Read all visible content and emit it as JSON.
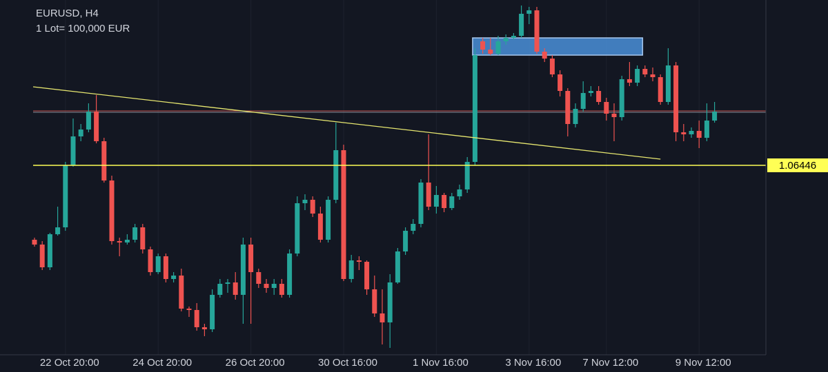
{
  "chart_data": {
    "type": "candlestick",
    "title": "EURUSD, H4",
    "subtitle": "1 Lot= 100,000 EUR",
    "up_color": "#26a69a",
    "down_color": "#ef5350",
    "ylim": [
      1.05071,
      1.07646
    ],
    "categories": [
      null,
      null,
      null,
      null,
      "22 Oct 20:00",
      null,
      null,
      null,
      null,
      null,
      null,
      null,
      null,
      null,
      null,
      null,
      "24 Oct 20:00",
      null,
      null,
      null,
      null,
      null,
      null,
      null,
      null,
      null,
      null,
      null,
      "26 Oct 20:00",
      null,
      null,
      null,
      null,
      null,
      null,
      null,
      null,
      null,
      null,
      null,
      "30 Oct 16:00",
      null,
      null,
      null,
      null,
      null,
      null,
      null,
      null,
      null,
      null,
      null,
      "1 Nov 16:00",
      null,
      null,
      null,
      null,
      null,
      null,
      null,
      null,
      null,
      null,
      null,
      "3 Nov 16:00",
      null,
      null,
      null,
      null,
      null,
      null,
      null,
      null,
      null,
      "7 Nov 12:00",
      null,
      null,
      null,
      null,
      null,
      null,
      null,
      null,
      null,
      null,
      null,
      "9 Nov 12:00",
      null,
      null
    ],
    "open": [
      1.05906,
      1.05871,
      1.05706,
      1.05946,
      1.05996,
      1.06446,
      1.06656,
      1.06706,
      1.06836,
      1.06621,
      1.06336,
      1.05896,
      1.05886,
      1.05906,
      1.05996,
      1.05836,
      1.05671,
      1.05786,
      1.05621,
      1.05646,
      1.05406,
      1.05396,
      1.05271,
      1.05256,
      1.05506,
      1.05586,
      1.05596,
      1.05506,
      1.05871,
      1.05671,
      1.05586,
      1.05556,
      1.05586,
      1.05506,
      1.05806,
      1.06171,
      1.06196,
      1.06096,
      1.05906,
      1.06196,
      1.06556,
      1.05621,
      1.05756,
      1.05746,
      1.05546,
      1.05371,
      1.05306,
      1.05596,
      1.05821,
      1.05971,
      1.06021,
      1.06321,
      1.06146,
      1.06231,
      1.06136,
      1.06221,
      1.06271,
      1.06471,
      1.07346,
      1.07286,
      1.07256,
      1.07346,
      1.07371,
      1.07386,
      1.07546,
      1.07571,
      1.07271,
      1.07221,
      1.07106,
      1.06986,
      1.06746,
      1.06856,
      1.06971,
      1.06986,
      1.06906,
      1.06821,
      1.06796,
      1.07071,
      1.07046,
      1.07146,
      1.07106,
      1.07086,
      1.06906,
      1.07171,
      1.06686,
      1.06671,
      1.06696,
      1.06646,
      1.06771
    ],
    "high": [
      1.05921,
      1.05896,
      1.05956,
      1.06146,
      1.06471,
      1.06786,
      1.06746,
      1.06896,
      1.06956,
      1.06646,
      1.06371,
      1.05921,
      1.05946,
      1.06021,
      1.06021,
      1.05856,
      1.05806,
      1.05806,
      1.05671,
      1.05696,
      1.05421,
      1.05446,
      1.05296,
      1.05546,
      1.05621,
      1.05621,
      1.05671,
      1.05921,
      1.05921,
      1.05696,
      1.05621,
      1.05621,
      1.05621,
      1.05836,
      1.06221,
      1.06236,
      1.06221,
      1.06146,
      1.06221,
      1.06756,
      1.06596,
      1.05796,
      1.05786,
      1.05756,
      1.05646,
      1.05546,
      1.05656,
      1.05846,
      1.05996,
      1.06056,
      1.06346,
      1.06671,
      1.06296,
      1.06246,
      1.06246,
      1.06306,
      1.06506,
      1.07296,
      1.07371,
      1.07371,
      1.07386,
      1.07396,
      1.07406,
      1.07606,
      1.07596,
      1.07596,
      1.07296,
      1.07246,
      1.07136,
      1.07006,
      1.06896,
      1.07056,
      1.07021,
      1.07021,
      1.06936,
      1.06896,
      1.07096,
      1.07196,
      1.07171,
      1.07171,
      1.07156,
      1.07106,
      1.07296,
      1.07196,
      1.06746,
      1.06721,
      1.06771,
      1.06896,
      1.06906
    ],
    "low": [
      1.05856,
      1.05686,
      1.05686,
      1.05936,
      1.05971,
      1.06436,
      1.06621,
      1.06686,
      1.06606,
      1.06321,
      1.05871,
      1.05786,
      1.05871,
      1.05886,
      1.05806,
      1.05646,
      1.05656,
      1.05596,
      1.05596,
      1.05386,
      1.05346,
      1.05246,
      1.05206,
      1.05236,
      1.05486,
      1.05521,
      1.05471,
      1.05296,
      1.05296,
      1.05556,
      1.05521,
      1.05506,
      1.05486,
      1.05486,
      1.05786,
      1.06121,
      1.06071,
      1.05886,
      1.05886,
      1.06171,
      1.05606,
      1.05596,
      1.05686,
      1.05506,
      1.05346,
      1.05146,
      1.05121,
      1.05586,
      1.05796,
      1.05946,
      1.05996,
      1.06121,
      1.06096,
      1.06106,
      1.06121,
      1.06196,
      1.06246,
      1.06446,
      1.07256,
      1.07246,
      1.07246,
      1.07321,
      1.07356,
      1.07371,
      1.07471,
      1.07256,
      1.07196,
      1.07086,
      1.06946,
      1.06656,
      1.06721,
      1.06836,
      1.06946,
      1.06886,
      1.06771,
      1.06621,
      1.06771,
      1.07021,
      1.07021,
      1.07086,
      1.07056,
      1.06886,
      1.06886,
      1.06621,
      1.06621,
      1.06646,
      1.06571,
      1.06621,
      1.06756
    ],
    "close": [
      1.05871,
      1.05706,
      1.05946,
      1.05996,
      1.06446,
      1.06656,
      1.06706,
      1.06836,
      1.06621,
      1.06336,
      1.05896,
      1.05886,
      1.05906,
      1.05996,
      1.05836,
      1.05671,
      1.05786,
      1.05621,
      1.05646,
      1.05406,
      1.05396,
      1.05271,
      1.05256,
      1.05506,
      1.05586,
      1.05596,
      1.05506,
      1.05871,
      1.05671,
      1.05586,
      1.05556,
      1.05586,
      1.05506,
      1.05806,
      1.06171,
      1.06196,
      1.06096,
      1.05906,
      1.06196,
      1.06556,
      1.05621,
      1.05756,
      1.05746,
      1.05546,
      1.05371,
      1.05306,
      1.05596,
      1.05821,
      1.05971,
      1.06021,
      1.06321,
      1.06146,
      1.06231,
      1.06136,
      1.06221,
      1.06271,
      1.06471,
      1.07246,
      1.07286,
      1.07256,
      1.07346,
      1.07371,
      1.07386,
      1.07546,
      1.07571,
      1.07271,
      1.07221,
      1.07106,
      1.06986,
      1.06746,
      1.06856,
      1.06971,
      1.06986,
      1.06906,
      1.06821,
      1.06796,
      1.07071,
      1.07046,
      1.07146,
      1.07106,
      1.07086,
      1.06906,
      1.07171,
      1.06686,
      1.06671,
      1.06696,
      1.06646,
      1.06771,
      1.06836
    ],
    "level": {
      "value": 1.06446,
      "color": "#ffff55"
    },
    "last_price": {
      "value": 1.06841,
      "color": "#c0504d"
    },
    "trendline": {
      "color": "#e8e870",
      "start_index": 0,
      "start_value": 1.07016,
      "end_index": 81,
      "end_value": 1.06491
    },
    "zone": {
      "start_index": 57,
      "end_index": 79,
      "top": 1.07371,
      "bottom": 1.07246,
      "color": "#4a8fd8"
    }
  }
}
